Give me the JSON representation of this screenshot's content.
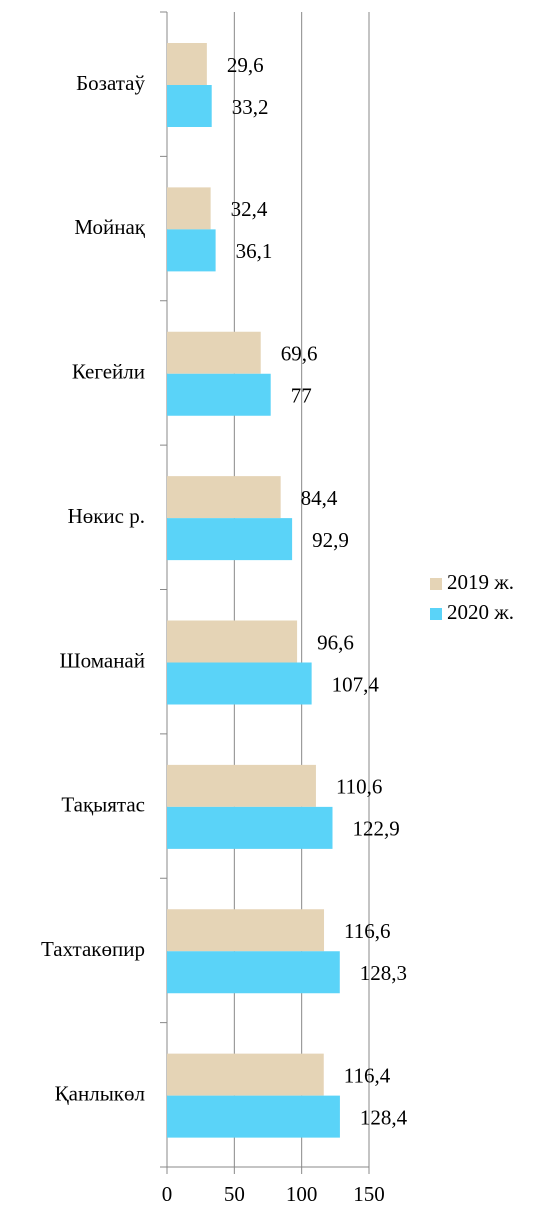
{
  "chart_data": {
    "type": "barh",
    "categories": [
      "Бозатаў",
      "Мойнақ",
      "Кегейли",
      "Нөкис р.",
      "Шоманай",
      "Тақыятас",
      "Тахтакөпир",
      "Қанлыкөл"
    ],
    "series": [
      {
        "name": "2019 ж.",
        "color": "#e5d4b6",
        "values": [
          29.6,
          32.4,
          69.6,
          84.4,
          96.6,
          110.6,
          116.6,
          116.4
        ],
        "value_labels": [
          "29,6",
          "32,4",
          "69,6",
          "84,4",
          "96,6",
          "110,6",
          "116,6",
          "116,4"
        ]
      },
      {
        "name": "2020 ж.",
        "color": "#5ad3f8",
        "values": [
          33.2,
          36.1,
          77,
          92.9,
          107.4,
          122.9,
          128.3,
          128.4
        ],
        "value_labels": [
          "33,2",
          "36,1",
          "77",
          "92,9",
          "107,4",
          "122,9",
          "128,3",
          "128,4"
        ]
      }
    ],
    "xlim": [
      0,
      150
    ],
    "xticks": [
      0,
      50,
      100,
      150
    ],
    "grid": true,
    "legend": "right"
  }
}
